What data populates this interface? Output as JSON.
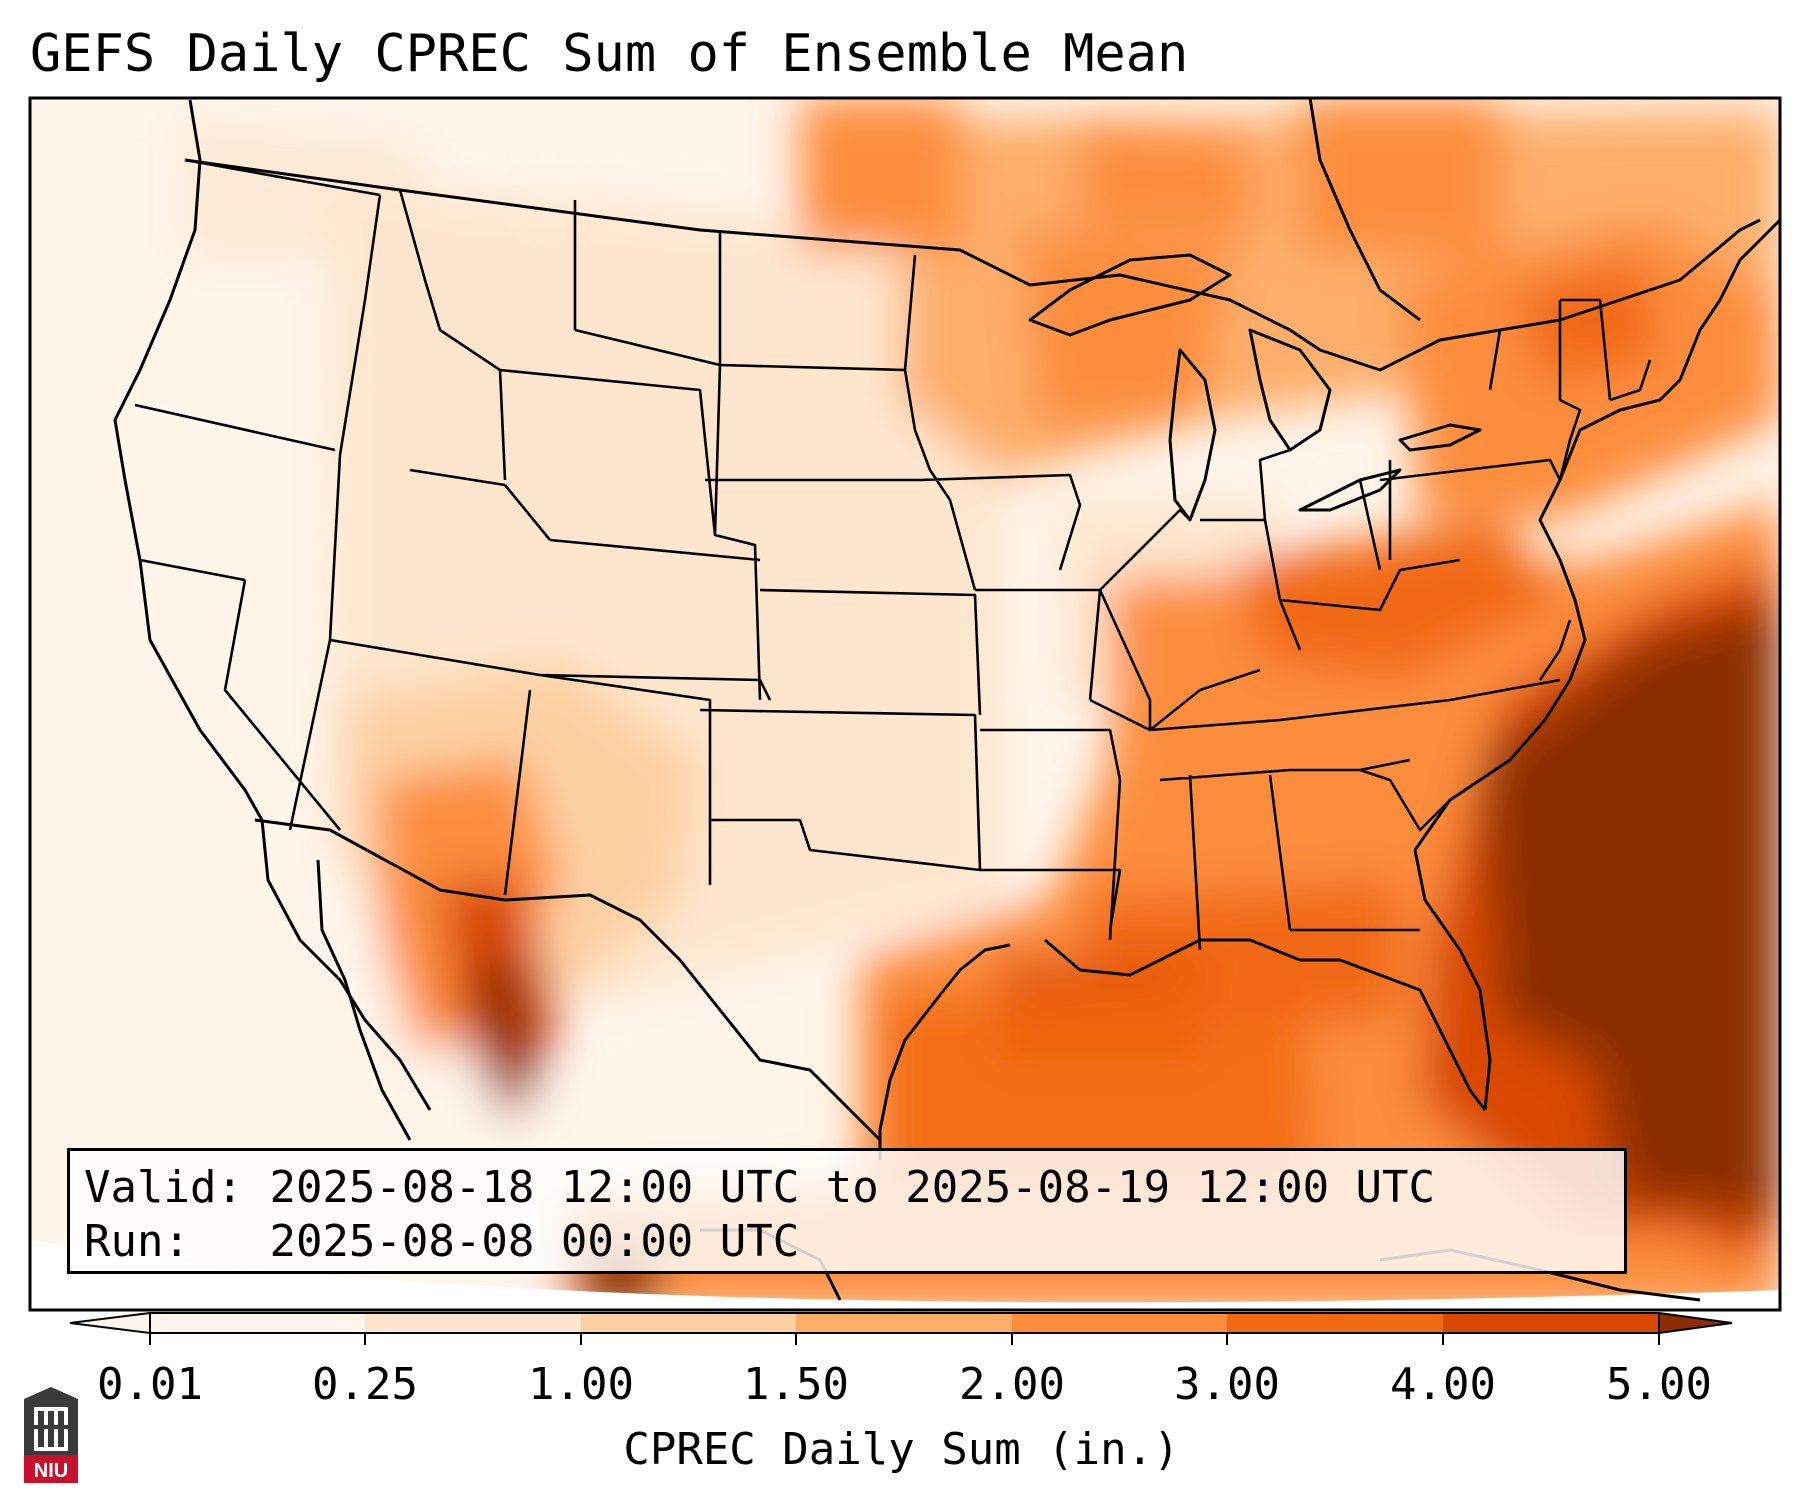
{
  "title": "GEFS Daily CPREC Sum of Ensemble Mean",
  "info": {
    "valid_label": "Valid:",
    "valid_value": "2025-08-18 12:00 UTC to 2025-08-19 12:00 UTC",
    "run_label": "Run:  ",
    "run_value": "2025-08-08 00:00 UTC"
  },
  "colorbar": {
    "label": "CPREC Daily Sum (in.)",
    "ticks": [
      "0.01",
      "0.25",
      "1.00",
      "1.50",
      "2.00",
      "3.00",
      "4.00",
      "5.00"
    ],
    "colors": [
      "#fff5eb",
      "#fee6ce",
      "#fdd0a2",
      "#fdae6b",
      "#fd8d3c",
      "#f16913",
      "#d94801",
      "#8c2d04"
    ],
    "extend": "both"
  },
  "logo": {
    "name": "NIU",
    "text": "NIU",
    "color": "#c8102e"
  },
  "map": {
    "projection": "Lambert conformal",
    "region": "Contiguous United States",
    "layers": [
      "precipitation-field",
      "coastlines",
      "state-borders",
      "country-borders"
    ]
  }
}
